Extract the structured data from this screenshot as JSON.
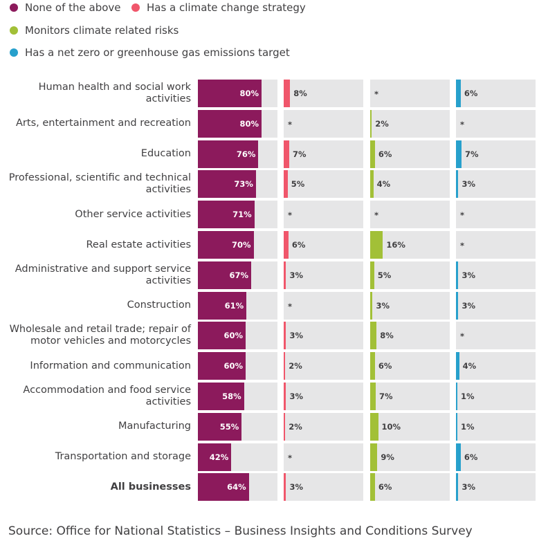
{
  "legend": [
    {
      "label": "None of the above",
      "color": "#8c1a5c"
    },
    {
      "label": "Has a climate change strategy",
      "color": "#f0566b"
    },
    {
      "label": "Monitors climate related risks",
      "color": "#a2c037"
    },
    {
      "label": "Has a net zero or greenhouse gas emissions target",
      "color": "#27a0cc"
    }
  ],
  "chart_data": {
    "type": "bar",
    "orientation": "horizontal",
    "layout": "small-multiples",
    "value_unit": "%",
    "xlim": [
      0,
      100
    ],
    "suppressed_marker": "*",
    "categories": [
      "Human health and social work activities",
      "Arts, entertainment and recreation",
      "Education",
      "Professional, scientific and technical activities",
      "Other service activities",
      "Real estate activities",
      "Administrative and support service activities",
      "Construction",
      "Wholesale and retail trade; repair of motor vehicles and motorcycles",
      "Information and communication",
      "Accommodation and food service activities",
      "Manufacturing",
      "Transportation and storage",
      "All businesses"
    ],
    "emphasized_category": "All businesses",
    "series": [
      {
        "name": "None of the above",
        "color": "#8c1a5c",
        "values": [
          80,
          80,
          76,
          73,
          71,
          70,
          67,
          61,
          60,
          60,
          58,
          55,
          42,
          64
        ]
      },
      {
        "name": "Has a climate change strategy",
        "color": "#f0566b",
        "values": [
          8,
          null,
          7,
          5,
          null,
          6,
          3,
          null,
          3,
          2,
          3,
          2,
          null,
          3
        ]
      },
      {
        "name": "Monitors climate related risks",
        "color": "#a2c037",
        "values": [
          null,
          2,
          6,
          4,
          null,
          16,
          5,
          3,
          8,
          6,
          7,
          10,
          9,
          6
        ]
      },
      {
        "name": "Has a net zero or greenhouse gas emissions target",
        "color": "#27a0cc",
        "values": [
          6,
          null,
          7,
          3,
          null,
          null,
          3,
          3,
          null,
          4,
          1,
          1,
          6,
          3
        ]
      }
    ]
  },
  "source": "Source: Office for National Statistics – Business Insights and Conditions Survey"
}
